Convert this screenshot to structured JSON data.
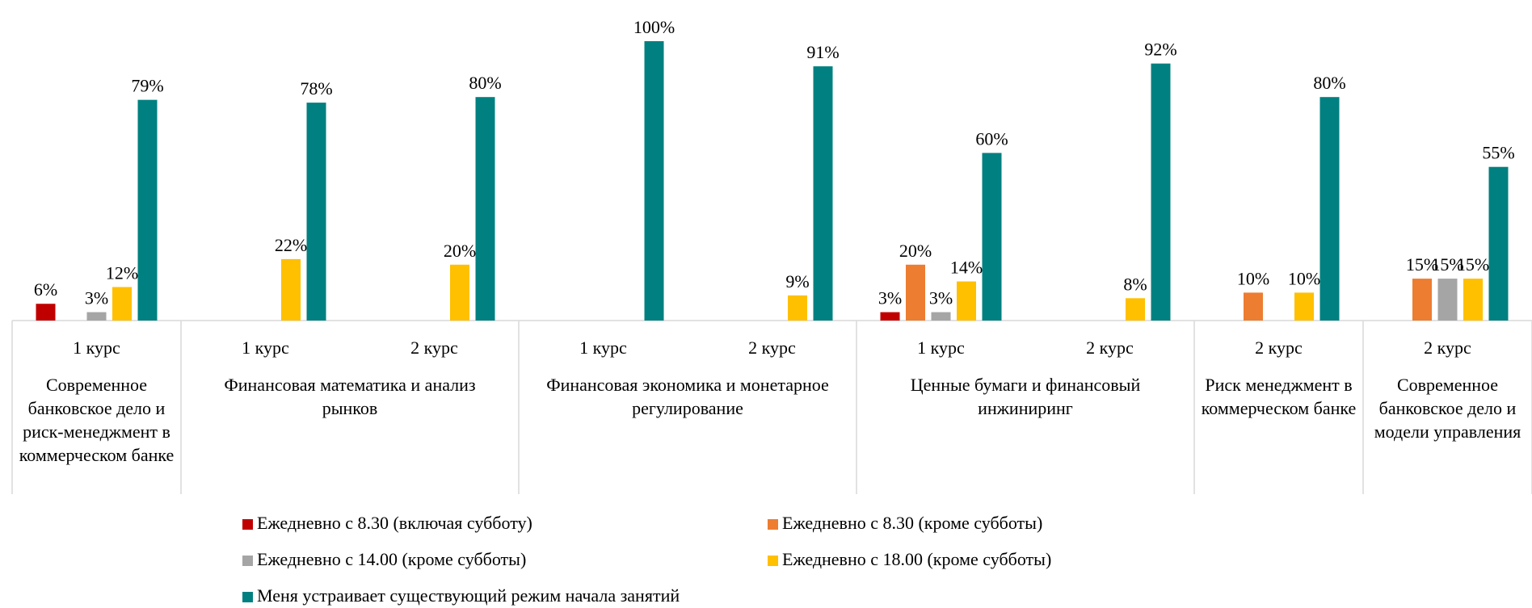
{
  "chart_data": {
    "type": "bar",
    "groups": [
      {
        "label": "Современное банковское дело и риск-менеджмент в коммерческом банке",
        "categories": [
          "1 курс"
        ]
      },
      {
        "label": "Финансовая математика и анализ рынков",
        "categories": [
          "1 курс",
          "2 курс"
        ]
      },
      {
        "label": "Финансовая экономика и монетарное регулирование",
        "categories": [
          "1 курс",
          "2 курс"
        ]
      },
      {
        "label": "Ценные бумаги и финансовый инжиниринг",
        "categories": [
          "1 курс",
          "2 курс"
        ]
      },
      {
        "label": "Риск менеджмент в коммерческом банке",
        "categories": [
          "2 курс"
        ]
      },
      {
        "label": "Современное банковское дело и модели управления",
        "categories": [
          "2 курс"
        ]
      }
    ],
    "series": [
      {
        "name": "Ежедневно с 8.30 (включая субботу)",
        "color": "#c00000",
        "values": [
          6,
          null,
          null,
          null,
          null,
          3,
          null,
          null,
          null
        ],
        "value_labels": [
          "6%",
          null,
          null,
          null,
          null,
          "3%",
          null,
          null,
          null
        ]
      },
      {
        "name": "Ежедневно с 8.30 (кроме субботы)",
        "color": "#ed7d31",
        "values": [
          null,
          null,
          null,
          null,
          null,
          20,
          null,
          10,
          15
        ],
        "value_labels": [
          null,
          null,
          null,
          null,
          null,
          "20%",
          null,
          "10%",
          "15%"
        ]
      },
      {
        "name": "Ежедневно с 14.00 (кроме субботы)",
        "color": "#a5a5a5",
        "values": [
          3,
          null,
          null,
          null,
          null,
          3,
          null,
          null,
          15
        ],
        "value_labels": [
          "3%",
          null,
          null,
          null,
          null,
          "3%",
          null,
          null,
          "15%"
        ]
      },
      {
        "name": "Ежедневно с 18.00 (кроме субботы)",
        "color": "#ffc000",
        "values": [
          12,
          22,
          20,
          null,
          9,
          14,
          8,
          10,
          15
        ],
        "value_labels": [
          "12%",
          "22%",
          "20%",
          null,
          "9%",
          "14%",
          "8%",
          "10%",
          "15%"
        ]
      },
      {
        "name": "Меня устраивает существующий режим начала занятий",
        "color": "#008080",
        "values": [
          79,
          78,
          80,
          100,
          91,
          60,
          92,
          80,
          55
        ],
        "value_labels": [
          "79%",
          "78%",
          "80%",
          "100%",
          "91%",
          "60%",
          "92%",
          "80%",
          "55%"
        ]
      }
    ],
    "ylim": [
      0,
      100
    ]
  }
}
